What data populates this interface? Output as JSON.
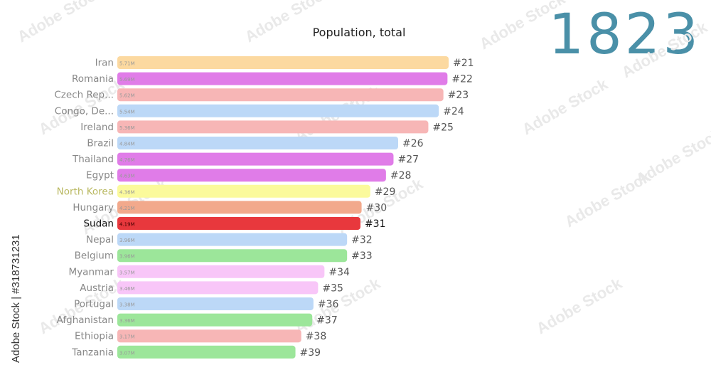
{
  "chart_data": {
    "type": "bar",
    "title": "Population, total",
    "year": "1823",
    "categories": [
      "Iran",
      "Romania",
      "Czech Rep...",
      "Congo, De...",
      "Ireland",
      "Brazil",
      "Thailand",
      "Egypt",
      "North Korea",
      "Hungary",
      "Sudan",
      "Nepal",
      "Belgium",
      "Myanmar",
      "Austria",
      "Portugal",
      "Afghanistan",
      "Ethiopia",
      "Tanzania"
    ],
    "values": [
      5.71,
      5.69,
      5.62,
      5.54,
      5.36,
      4.84,
      4.76,
      4.63,
      4.36,
      4.21,
      4.19,
      3.96,
      3.96,
      3.57,
      3.46,
      3.38,
      3.36,
      3.17,
      3.07
    ],
    "value_labels": [
      "5.71M",
      "5.69M",
      "5.62M",
      "5.54M",
      "5.36M",
      "4.84M",
      "4.76M",
      "4.63M",
      "4.36M",
      "4.21M",
      "4.19M",
      "3.96M",
      "3.96M",
      "3.57M",
      "3.46M",
      "3.38M",
      "3.36M",
      "3.17M",
      "3.07M"
    ],
    "ranks": [
      "#21",
      "#22",
      "#23",
      "#24",
      "#25",
      "#26",
      "#27",
      "#28",
      "#29",
      "#30",
      "#31",
      "#32",
      "#33",
      "#34",
      "#35",
      "#36",
      "#37",
      "#38",
      "#39"
    ],
    "colors": [
      "#fcd9a0",
      "#e07ce8",
      "#f7b6b6",
      "#bcd8f7",
      "#f7b6b6",
      "#bcd8f7",
      "#e07ce8",
      "#e07ce8",
      "#fbfa9c",
      "#f2a98c",
      "#e8383d",
      "#bcd8f7",
      "#9ce69a",
      "#f8c6f8",
      "#f8c6f8",
      "#bcd8f7",
      "#9ce69a",
      "#f7b6b6",
      "#9ce69a"
    ],
    "highlight_index": 10,
    "highlight_color": "#e8383d"
  },
  "watermark": {
    "side_text": "Adobe Stock | #318731231",
    "tile_text": "Adobe Stock"
  }
}
